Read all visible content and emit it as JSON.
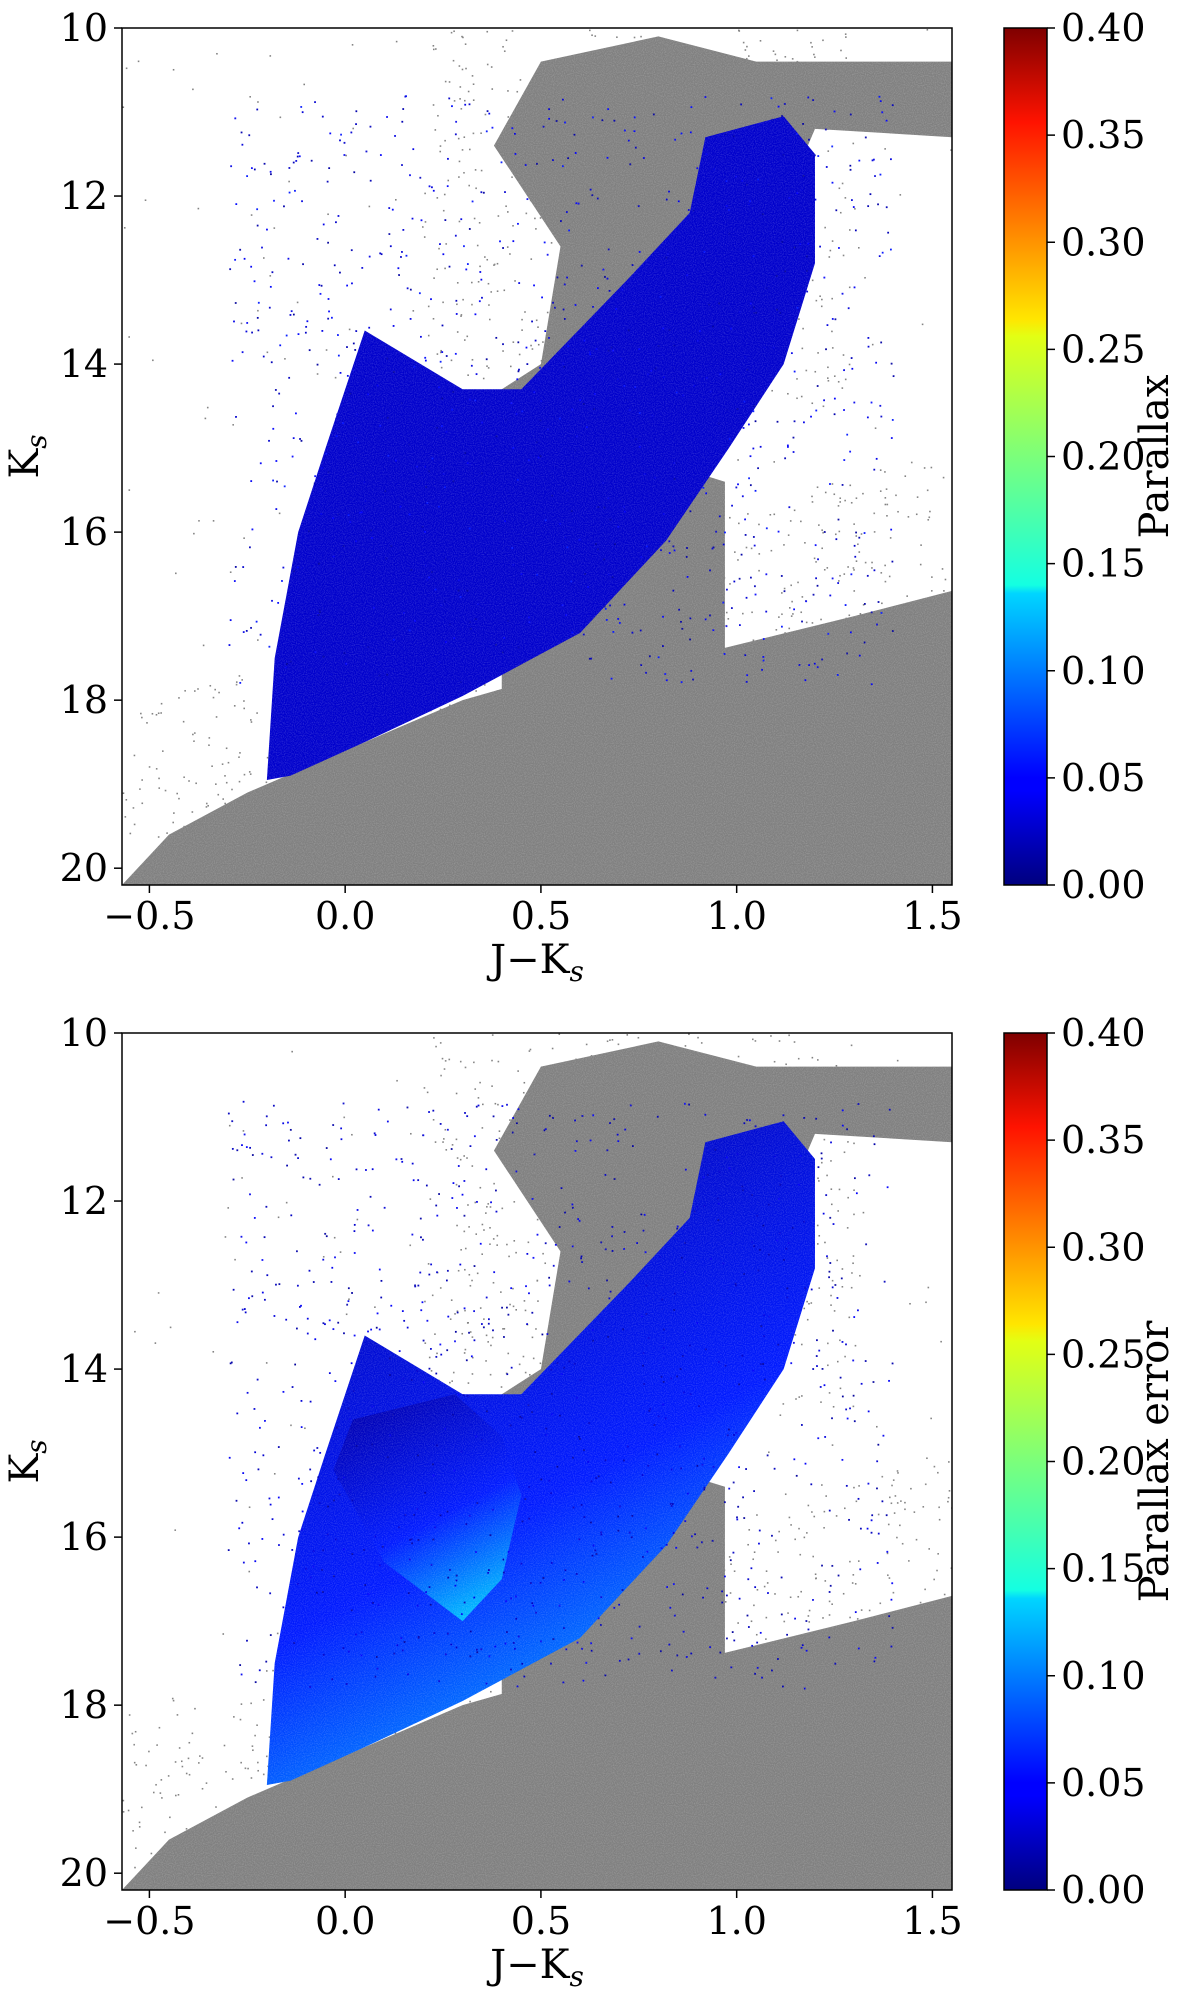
{
  "chart_data": [
    {
      "type": "scatter",
      "panel": "top",
      "xlabel_main": "J−K",
      "xlabel_sub": "s",
      "ylabel_main": "K",
      "ylabel_sub": "s",
      "xlim": [
        -0.57,
        1.55
      ],
      "ylim": [
        20.2,
        10.0
      ],
      "y_inverted": true,
      "xticks": [
        "−0.5",
        "0.0",
        "0.5",
        "1.0",
        "1.5"
      ],
      "xtick_values": [
        -0.5,
        0.0,
        0.5,
        1.0,
        1.5
      ],
      "yticks": [
        "10",
        "12",
        "14",
        "16",
        "18",
        "20"
      ],
      "ytick_values": [
        10,
        12,
        14,
        16,
        18,
        20
      ],
      "background_color": "#808080",
      "colorbar": {
        "label": "Parallax",
        "range": [
          0.0,
          0.4
        ],
        "ticks": [
          "0.00",
          "0.05",
          "0.10",
          "0.15",
          "0.20",
          "0.25",
          "0.30",
          "0.35",
          "0.40"
        ],
        "colormap": "jet"
      },
      "colored_series_value": 0.03
    },
    {
      "type": "scatter",
      "panel": "bottom",
      "xlabel_main": "J−K",
      "xlabel_sub": "s",
      "ylabel_main": "K",
      "ylabel_sub": "s",
      "xlim": [
        -0.57,
        1.55
      ],
      "ylim": [
        20.2,
        10.0
      ],
      "y_inverted": true,
      "xticks": [
        "−0.5",
        "0.0",
        "0.5",
        "1.0",
        "1.5"
      ],
      "xtick_values": [
        -0.5,
        0.0,
        0.5,
        1.0,
        1.5
      ],
      "yticks": [
        "10",
        "12",
        "14",
        "16",
        "18",
        "20"
      ],
      "ytick_values": [
        10,
        12,
        14,
        16,
        18,
        20
      ],
      "background_color": "#808080",
      "colorbar": {
        "label": "Parallax error",
        "range": [
          0.0,
          0.4
        ],
        "ticks": [
          "0.00",
          "0.05",
          "0.10",
          "0.15",
          "0.20",
          "0.25",
          "0.30",
          "0.35",
          "0.40"
        ],
        "colormap": "jet"
      },
      "colored_series_value_gradient": [
        0.02,
        0.12
      ]
    }
  ]
}
